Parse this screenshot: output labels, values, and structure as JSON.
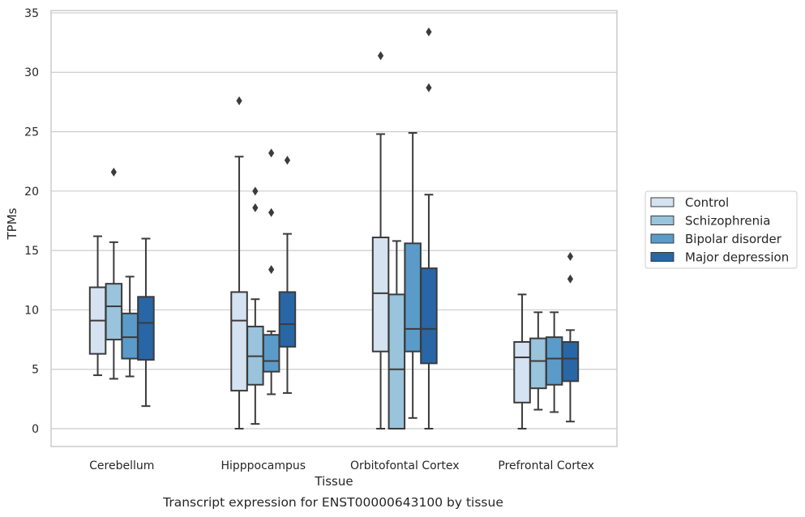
{
  "chart_data": {
    "type": "box",
    "title": "",
    "caption": "Transcript expression for ENST00000643100 by tissue",
    "xlabel": "Tissue",
    "ylabel": "TPMs",
    "ylim": [
      -1.5,
      35.2
    ],
    "yticks": [
      0,
      5,
      10,
      15,
      20,
      25,
      30,
      35
    ],
    "grid": true,
    "legend_position": "right",
    "categories": [
      "Cerebellum",
      "Hipppocampus",
      "Orbitofontal Cortex",
      "Prefrontal Cortex"
    ],
    "series": [
      {
        "name": "Control",
        "color": "#d4e2f1",
        "boxes": [
          {
            "whislo": 4.5,
            "q1": 6.3,
            "med": 9.1,
            "q3": 11.9,
            "whishi": 16.2,
            "fliers": []
          },
          {
            "whislo": 0.0,
            "q1": 3.2,
            "med": 9.1,
            "q3": 11.5,
            "whishi": 22.9,
            "fliers": [
              27.6
            ]
          },
          {
            "whislo": 0.0,
            "q1": 6.5,
            "med": 11.4,
            "q3": 16.1,
            "whishi": 24.8,
            "fliers": [
              31.4
            ]
          },
          {
            "whislo": 0.0,
            "q1": 2.2,
            "med": 6.0,
            "q3": 7.3,
            "whishi": 11.3,
            "fliers": []
          }
        ]
      },
      {
        "name": "Schizophrenia",
        "color": "#9ac3dc",
        "boxes": [
          {
            "whislo": 4.2,
            "q1": 7.5,
            "med": 10.3,
            "q3": 12.2,
            "whishi": 15.7,
            "fliers": [
              21.6
            ]
          },
          {
            "whislo": 0.4,
            "q1": 3.7,
            "med": 6.1,
            "q3": 8.6,
            "whishi": 10.9,
            "fliers": [
              20.0,
              18.6
            ]
          },
          {
            "whislo": 0.0,
            "q1": 0.0,
            "med": 5.0,
            "q3": 11.3,
            "whishi": 15.8,
            "fliers": []
          },
          {
            "whislo": 1.6,
            "q1": 3.4,
            "med": 5.7,
            "q3": 7.6,
            "whishi": 9.8,
            "fliers": []
          }
        ]
      },
      {
        "name": "Bipolar disorder",
        "color": "#5a9bc9",
        "boxes": [
          {
            "whislo": 4.4,
            "q1": 5.9,
            "med": 7.7,
            "q3": 9.7,
            "whishi": 12.8,
            "fliers": []
          },
          {
            "whislo": 2.9,
            "q1": 4.8,
            "med": 5.7,
            "q3": 7.9,
            "whishi": 8.2,
            "fliers": [
              23.2,
              18.2,
              13.4
            ]
          },
          {
            "whislo": 0.9,
            "q1": 6.5,
            "med": 8.4,
            "q3": 15.6,
            "whishi": 24.9,
            "fliers": []
          },
          {
            "whislo": 1.4,
            "q1": 3.7,
            "med": 5.9,
            "q3": 7.7,
            "whishi": 9.8,
            "fliers": []
          }
        ]
      },
      {
        "name": "Major depression",
        "color": "#2866a6",
        "boxes": [
          {
            "whislo": 1.9,
            "q1": 5.8,
            "med": 8.9,
            "q3": 11.1,
            "whishi": 16.0,
            "fliers": []
          },
          {
            "whislo": 3.0,
            "q1": 6.9,
            "med": 8.8,
            "q3": 11.5,
            "whishi": 16.4,
            "fliers": [
              22.6
            ]
          },
          {
            "whislo": 0.0,
            "q1": 5.5,
            "med": 8.4,
            "q3": 13.5,
            "whishi": 19.7,
            "fliers": [
              33.4,
              28.7
            ]
          },
          {
            "whislo": 0.6,
            "q1": 4.0,
            "med": 5.9,
            "q3": 7.3,
            "whishi": 8.3,
            "fliers": [
              14.5,
              12.6
            ]
          }
        ]
      }
    ]
  }
}
